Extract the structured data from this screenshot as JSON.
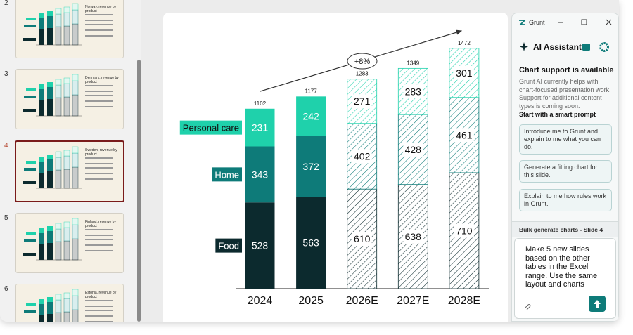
{
  "slides": [
    {
      "number": 2,
      "title": "Norway, revenue by product"
    },
    {
      "number": 3,
      "title": "Denmark, revenue by product"
    },
    {
      "number": 4,
      "title": "Sweden, revenue by product",
      "selected": true
    },
    {
      "number": 5,
      "title": "Finland, revenue by product"
    },
    {
      "number": 6,
      "title": "Estonia, revenue by product"
    }
  ],
  "chart_data": {
    "type": "bar",
    "stacked": true,
    "categories": [
      "2024",
      "2025",
      "2026E",
      "2027E",
      "2028E"
    ],
    "forecast": [
      false,
      false,
      true,
      true,
      true
    ],
    "series": [
      {
        "name": "Food",
        "color": "#0c2a2e",
        "values": [
          528,
          563,
          610,
          638,
          710
        ]
      },
      {
        "name": "Home",
        "color": "#0e7b79",
        "values": [
          343,
          372,
          402,
          428,
          461
        ]
      },
      {
        "name": "Personal care",
        "color": "#1fd1ab",
        "values": [
          231,
          242,
          271,
          283,
          301
        ]
      }
    ],
    "totals": [
      1102,
      1177,
      1283,
      1349,
      1472
    ],
    "annotation": "+8%"
  },
  "assistant": {
    "window_title": "Grunt",
    "panel_title": "AI Assistant",
    "heading": "Chart support is available",
    "description": "Grunt AI currently helps with chart-focused presentation work. Support for additional content types is coming soon.",
    "prompts_title": "Start with a smart prompt",
    "prompts": [
      "Introduce me to Grunt and explain to me what you can do.",
      "Generate a fitting chart for this slide.",
      "Explain to me how rules work in Grunt."
    ],
    "composer_title": "Bulk generate charts - Slide 4",
    "composer_text": "Make 5 new slides based on the other tables in the Excel range. Use the same layout and charts"
  }
}
